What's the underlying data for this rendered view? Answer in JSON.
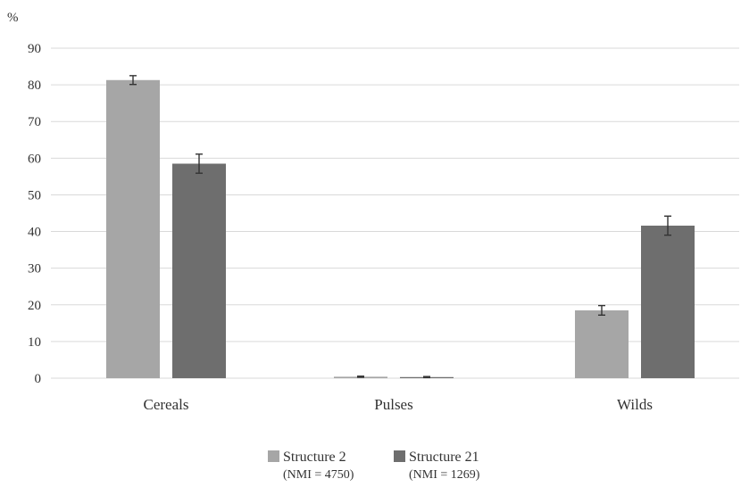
{
  "chart_data": {
    "type": "bar",
    "ylabel": "%",
    "ylim": [
      0,
      90
    ],
    "yticks": [
      0,
      10,
      20,
      30,
      40,
      50,
      60,
      70,
      80,
      90
    ],
    "grid": true,
    "legend_position": "bottom",
    "categories": [
      "Cereals",
      "Pulses",
      "Wilds"
    ],
    "series": [
      {
        "name": "Structure 2",
        "note": "(NMI = 4750)",
        "color": "#a6a6a6",
        "values": [
          81.3,
          0.4,
          18.5
        ],
        "errors": [
          1.2,
          0.15,
          1.3
        ]
      },
      {
        "name": "Structure 21",
        "note": "(NMI = 1269)",
        "color": "#6e6e6e",
        "values": [
          58.5,
          0.3,
          41.6
        ],
        "errors": [
          2.6,
          0.15,
          2.6
        ]
      }
    ]
  }
}
